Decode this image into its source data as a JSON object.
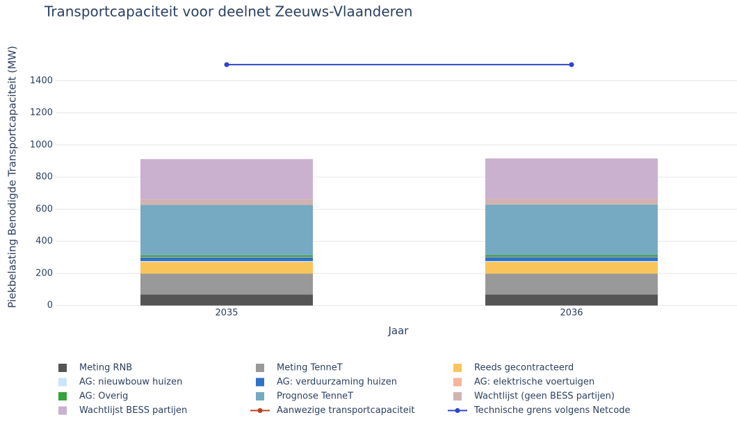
{
  "chart_data": {
    "type": "bar",
    "stacked": true,
    "title": "Transportcapaciteit voor deelnet Zeeuws-Vlaanderen",
    "x_label": "Jaar",
    "y_label": "Piekbelasting Benodigde Transportcapaciteit (MW)",
    "categories": [
      "2035",
      "2036"
    ],
    "ylim": [
      -25,
      1600
    ],
    "yticks": [
      0,
      200,
      400,
      600,
      800,
      1000,
      1200,
      1400
    ],
    "grid": true,
    "series": [
      {
        "name": "Meting RNB",
        "color": "#555555",
        "values": [
          68,
          68
        ]
      },
      {
        "name": "Meting TenneT",
        "color": "#999999",
        "values": [
          131,
          131
        ]
      },
      {
        "name": "Reeds gecontracteerd",
        "color": "#f9c55a",
        "values": [
          73,
          73
        ]
      },
      {
        "name": "AG: nieuwbouw huizen",
        "color": "#cce4fb",
        "values": [
          5,
          5
        ]
      },
      {
        "name": "AG: verduurzaming huizen",
        "color": "#2f72c8",
        "values": [
          23,
          24
        ]
      },
      {
        "name": "AG: elektrische voertuigen",
        "color": "#f9b49c",
        "values": [
          3,
          3
        ]
      },
      {
        "name": "AG: Overig",
        "color": "#35a33a",
        "values": [
          10,
          10
        ]
      },
      {
        "name": "Prognose TenneT",
        "color": "#76aac3",
        "values": [
          314,
          314
        ]
      },
      {
        "name": "Wachtlijst (geen BESS partijen)",
        "color": "#d0b3b0",
        "values": [
          34,
          37
        ]
      },
      {
        "name": "Wachtlijst BESS partijen",
        "color": "#c9b1cf",
        "values": [
          251,
          251
        ]
      },
      {
        "name": "Aanwezige transportcapaciteit",
        "color": "#b5451b",
        "type": "line",
        "values": [
          null,
          null
        ]
      },
      {
        "name": "Technische grens volgens Netcode",
        "color": "#2f44c9",
        "type": "line",
        "values": [
          1500,
          1500
        ]
      }
    ]
  }
}
